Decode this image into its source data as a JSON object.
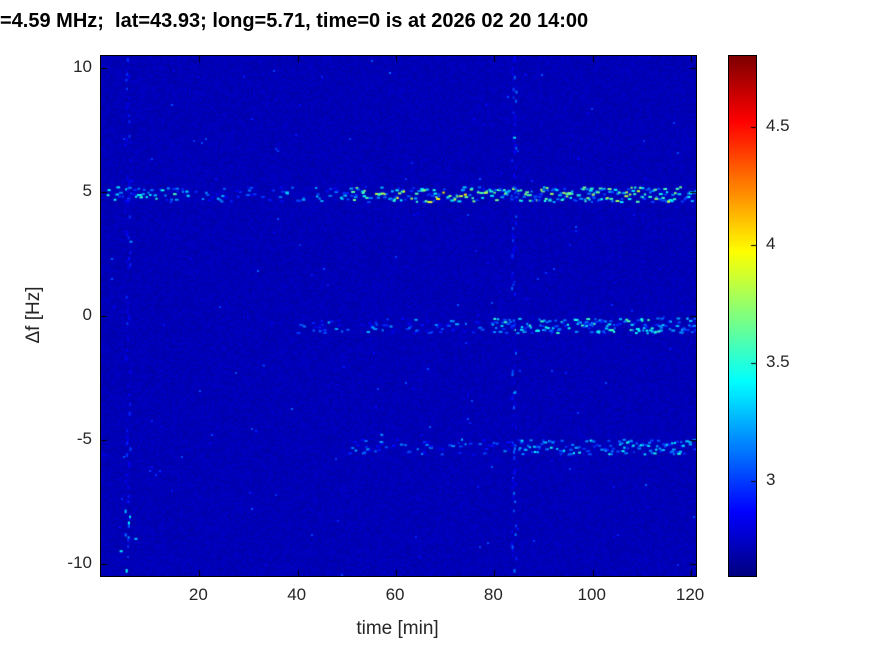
{
  "figure": {
    "title": "=4.59 MHz;  lat=43.93; long=5.71, time=0 is at 2026 02 20 14:00"
  },
  "chart_data": {
    "type": "heatmap",
    "title": "=4.59 MHz;  lat=43.93; long=5.71, time=0 is at 2026 02 20 14:00",
    "xlabel": "time [min]",
    "ylabel": "Δf [Hz]",
    "xlim": [
      0,
      121
    ],
    "ylim": [
      -10.5,
      10.5
    ],
    "x_ticks": [
      20,
      40,
      60,
      80,
      100,
      120
    ],
    "y_ticks": [
      10,
      5,
      0,
      -5,
      -10
    ],
    "colorbar_ticks": [
      4.5,
      4,
      3.5,
      3
    ],
    "value_range": [
      2.6,
      4.8
    ],
    "colormap": "jet",
    "grid": false,
    "legend": "colorbar-right",
    "background_value": 2.72,
    "background_noise": 0.07,
    "features": [
      {
        "kind": "hline",
        "y": 4.9,
        "thickness": 0.3,
        "segments": [
          {
            "x0": 1,
            "x1": 18,
            "density": 0.45,
            "vmin": 2.9,
            "vmax": 3.6
          },
          {
            "x0": 18,
            "x1": 50,
            "density": 0.3,
            "vmin": 2.85,
            "vmax": 3.35
          },
          {
            "x0": 50,
            "x1": 80,
            "density": 0.55,
            "vmin": 2.95,
            "vmax": 4.05
          },
          {
            "x0": 80,
            "x1": 121,
            "density": 0.8,
            "vmin": 3.0,
            "vmax": 3.9
          }
        ]
      },
      {
        "kind": "hline",
        "y": -0.4,
        "thickness": 0.3,
        "segments": [
          {
            "x0": 40,
            "x1": 80,
            "density": 0.3,
            "vmin": 2.85,
            "vmax": 3.3
          },
          {
            "x0": 80,
            "x1": 121,
            "density": 0.65,
            "vmin": 2.95,
            "vmax": 3.6
          }
        ]
      },
      {
        "kind": "hline",
        "y": -5.3,
        "thickness": 0.3,
        "segments": [
          {
            "x0": 50,
            "x1": 85,
            "density": 0.3,
            "vmin": 2.85,
            "vmax": 3.25
          },
          {
            "x0": 85,
            "x1": 121,
            "density": 0.6,
            "vmin": 2.95,
            "vmax": 3.5
          }
        ]
      },
      {
        "kind": "vline",
        "x": 84,
        "width": 0.5,
        "segments": [
          {
            "y0": -10.5,
            "y1": 10.5,
            "density": 0.5,
            "vmin": 2.8,
            "vmax": 3.15
          }
        ]
      },
      {
        "kind": "vline",
        "x": 5.5,
        "width": 0.5,
        "segments": [
          {
            "y0": -10.5,
            "y1": -7.5,
            "density": 0.6,
            "vmin": 2.95,
            "vmax": 3.5
          },
          {
            "y0": -7.5,
            "y1": 10.5,
            "density": 0.45,
            "vmin": 2.8,
            "vmax": 3.05
          }
        ]
      },
      {
        "kind": "specks",
        "points": [
          {
            "x": 84,
            "y": 7.2,
            "v": 3.35
          },
          {
            "x": 84,
            "y": -3.1,
            "v": 3.2
          },
          {
            "x": 6,
            "y": 3.0,
            "v": 3.2
          },
          {
            "x": 4,
            "y": -9.5,
            "v": 3.4
          },
          {
            "x": 7,
            "y": -9.0,
            "v": 3.3
          },
          {
            "x": 57,
            "y": -4.8,
            "v": 3.2
          },
          {
            "x": 33,
            "y": -2.0,
            "v": 3.0
          },
          {
            "x": 67,
            "y": 4.6,
            "v": 3.9
          },
          {
            "x": 74,
            "y": 4.9,
            "v": 4.0
          },
          {
            "x": 100,
            "y": 4.9,
            "v": 3.8
          },
          {
            "x": 112,
            "y": -0.5,
            "v": 3.5
          }
        ]
      }
    ]
  }
}
